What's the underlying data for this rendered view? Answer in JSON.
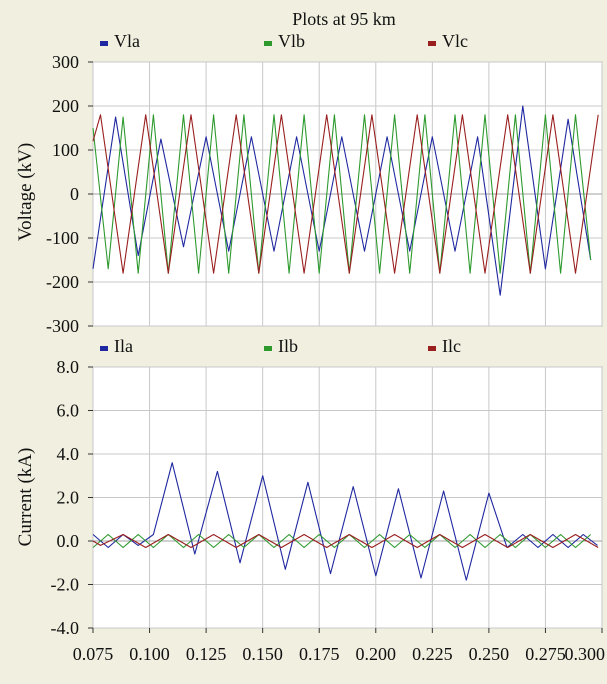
{
  "chart_data": [
    {
      "type": "line",
      "title": "Plots at 95 km",
      "ylabel": "Voltage (kV)",
      "ylim": [
        -300,
        300
      ],
      "yticks": [
        300,
        200,
        100,
        0,
        -100,
        -200,
        -300
      ],
      "yticklabels": [
        "300",
        "200",
        "100",
        "0",
        "-100",
        "-200",
        "-300"
      ],
      "xlim": [
        0.075,
        0.3
      ],
      "grid": true,
      "legend_position": "top",
      "series": [
        {
          "name": "Vla",
          "color": "#1f28a0",
          "x": [
            0.075,
            0.085,
            0.095,
            0.105,
            0.115,
            0.125,
            0.135,
            0.145,
            0.155,
            0.165,
            0.175,
            0.185,
            0.195,
            0.205,
            0.215,
            0.225,
            0.235,
            0.245,
            0.255,
            0.265,
            0.275,
            0.285,
            0.295
          ],
          "y": [
            -170,
            175,
            -140,
            125,
            -120,
            130,
            -130,
            130,
            -130,
            130,
            -130,
            130,
            -130,
            130,
            -130,
            130,
            -130,
            130,
            -230,
            200,
            -170,
            170,
            -150
          ]
        },
        {
          "name": "Vlb",
          "color": "#2e9a2e",
          "x": [
            0.075,
            0.0817,
            0.0883,
            0.095,
            0.1017,
            0.1083,
            0.115,
            0.1217,
            0.1283,
            0.135,
            0.1417,
            0.1483,
            0.155,
            0.1617,
            0.1683,
            0.175,
            0.1817,
            0.1883,
            0.195,
            0.2017,
            0.2083,
            0.215,
            0.2217,
            0.2283,
            0.235,
            0.2417,
            0.2483,
            0.255,
            0.2617,
            0.2683,
            0.275,
            0.2817,
            0.2883,
            0.295
          ],
          "y": [
            150,
            -170,
            175,
            -180,
            180,
            -180,
            180,
            -180,
            180,
            -180,
            180,
            -180,
            180,
            -180,
            180,
            -180,
            180,
            -180,
            180,
            -180,
            180,
            -180,
            180,
            -180,
            180,
            -180,
            180,
            -180,
            180,
            -180,
            180,
            -180,
            180,
            -150
          ]
        },
        {
          "name": "Vlc",
          "color": "#9a1f1f",
          "x": [
            0.075,
            0.0783,
            0.0883,
            0.0983,
            0.1083,
            0.1183,
            0.1283,
            0.1383,
            0.1483,
            0.1583,
            0.1683,
            0.1783,
            0.1883,
            0.1983,
            0.2083,
            0.2183,
            0.2283,
            0.2383,
            0.2483,
            0.2583,
            0.2683,
            0.2783,
            0.2883,
            0.2983
          ],
          "y": [
            120,
            180,
            -180,
            180,
            -180,
            180,
            -180,
            180,
            -180,
            180,
            -180,
            180,
            -180,
            180,
            -180,
            180,
            -180,
            180,
            -180,
            180,
            -180,
            180,
            -180,
            180
          ]
        }
      ]
    },
    {
      "type": "line",
      "ylabel": "Current (kA)",
      "ylim": [
        -4,
        8
      ],
      "yticks": [
        8,
        6,
        4,
        2,
        0,
        -2,
        -4
      ],
      "yticklabels": [
        "8.0",
        "6.0",
        "4.0",
        "2.0",
        "0.0",
        "-2.0",
        "-4.0"
      ],
      "xlim": [
        0.075,
        0.3
      ],
      "xticks": [
        0.075,
        0.1,
        0.125,
        0.15,
        0.175,
        0.2,
        0.225,
        0.25,
        0.275,
        0.3
      ],
      "xticklabels": [
        "0.075",
        "0.100",
        "0.125",
        "0.150",
        "0.175",
        "0.200",
        "0.225",
        "0.250",
        "0.275",
        "0.300"
      ],
      "grid": true,
      "legend_position": "top",
      "series": [
        {
          "name": "Ila",
          "color": "#1f28a0",
          "x": [
            0.075,
            0.0817,
            0.0883,
            0.095,
            0.1017,
            0.11,
            0.12,
            0.13,
            0.14,
            0.15,
            0.16,
            0.17,
            0.18,
            0.19,
            0.2,
            0.21,
            0.22,
            0.23,
            0.24,
            0.25,
            0.258,
            0.265,
            0.2717,
            0.2783,
            0.285,
            0.2917,
            0.298
          ],
          "y": [
            0.3,
            -0.3,
            0.3,
            -0.2,
            0.3,
            3.6,
            -0.6,
            3.2,
            -1.0,
            3.0,
            -1.3,
            2.7,
            -1.5,
            2.5,
            -1.6,
            2.4,
            -1.7,
            2.3,
            -1.8,
            2.2,
            -0.3,
            0.3,
            -0.3,
            0.3,
            -0.3,
            0.3,
            -0.2
          ]
        },
        {
          "name": "Ilb",
          "color": "#2e9a2e",
          "x": [
            0.075,
            0.0817,
            0.0883,
            0.095,
            0.1017,
            0.1083,
            0.115,
            0.1217,
            0.1283,
            0.135,
            0.1417,
            0.1483,
            0.155,
            0.1617,
            0.1683,
            0.175,
            0.1817,
            0.1883,
            0.195,
            0.2017,
            0.2083,
            0.215,
            0.2217,
            0.2283,
            0.235,
            0.2417,
            0.2483,
            0.255,
            0.2617,
            0.2683,
            0.275,
            0.2817,
            0.2883,
            0.295
          ],
          "y": [
            -0.3,
            0.3,
            -0.3,
            0.3,
            -0.3,
            0.3,
            -0.3,
            0.3,
            -0.3,
            0.3,
            -0.3,
            0.3,
            -0.3,
            0.3,
            -0.3,
            0.3,
            -0.3,
            0.3,
            -0.3,
            0.3,
            -0.3,
            0.3,
            -0.3,
            0.3,
            -0.3,
            0.3,
            -0.3,
            0.3,
            -0.3,
            0.3,
            -0.3,
            0.3,
            -0.3,
            0.3
          ]
        },
        {
          "name": "Ilc",
          "color": "#9a1f1f",
          "x": [
            0.075,
            0.0783,
            0.0883,
            0.0983,
            0.1083,
            0.1183,
            0.1283,
            0.1383,
            0.1483,
            0.1583,
            0.1683,
            0.1783,
            0.1883,
            0.1983,
            0.2083,
            0.2183,
            0.2283,
            0.2383,
            0.2483,
            0.2583,
            0.2683,
            0.2783,
            0.2883,
            0.2983
          ],
          "y": [
            0.0,
            -0.2,
            0.3,
            -0.3,
            0.3,
            -0.3,
            0.3,
            -0.3,
            0.3,
            -0.3,
            0.3,
            -0.3,
            0.3,
            -0.3,
            0.3,
            -0.3,
            0.3,
            -0.3,
            0.3,
            -0.3,
            0.3,
            -0.3,
            0.3,
            -0.3
          ]
        }
      ]
    }
  ]
}
